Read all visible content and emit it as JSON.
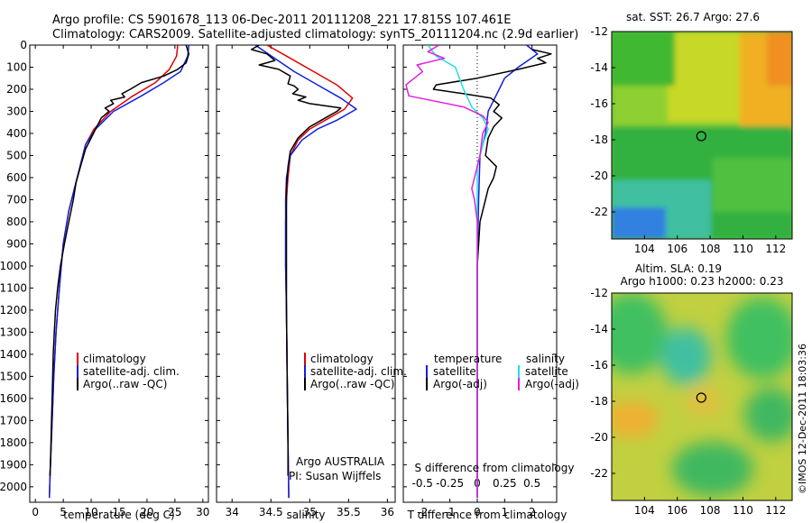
{
  "header": {
    "line1": "Argo profile: CS 5901678_113 06-Dec-2011 20111208_221 17.815S 107.461E",
    "line2": "Climatology: CARS2009. Satellite-adjusted climatology: synTS_20111204.nc (2.9d earlier)"
  },
  "colors": {
    "climatology": "#e00000",
    "satellite": "#1020e0",
    "argo": "#000000",
    "sat_salinity": "#20e0e0",
    "argo_salinity": "#e020e0"
  },
  "depth_axis": {
    "ticks": [
      0,
      100,
      200,
      300,
      400,
      500,
      600,
      700,
      800,
      900,
      1000,
      1100,
      1200,
      1300,
      1400,
      1500,
      1600,
      1700,
      1800,
      1900,
      2000
    ],
    "range": [
      0,
      2070
    ]
  },
  "chart_data": [
    {
      "type": "line",
      "id": "temperature",
      "xlabel": "temperature (deg C)",
      "xlim": [
        -1,
        31
      ],
      "xticks": [
        0,
        5,
        10,
        15,
        20,
        25,
        30
      ],
      "ylim": [
        2070,
        0
      ],
      "legend": [
        "climatology",
        "satellite-adj. clim.",
        "Argo(..raw -QC)"
      ],
      "series": [
        {
          "name": "climatology",
          "color": "#e00000",
          "points": [
            [
              25.5,
              0
            ],
            [
              25.3,
              50
            ],
            [
              24,
              110
            ],
            [
              21.5,
              170
            ],
            [
              17.5,
              230
            ],
            [
              13.5,
              300
            ],
            [
              10.5,
              380
            ],
            [
              9,
              450
            ],
            [
              8,
              550
            ],
            [
              7,
              650
            ],
            [
              6,
              750
            ],
            [
              5,
              900
            ],
            [
              4.3,
              1100
            ],
            [
              3.7,
              1300
            ],
            [
              3.3,
              1500
            ],
            [
              3,
              1700
            ],
            [
              2.7,
              1900
            ],
            [
              2.5,
              2050
            ]
          ]
        },
        {
          "name": "satellite-adj. clim.",
          "color": "#1020e0",
          "points": [
            [
              27.5,
              0
            ],
            [
              27.3,
              50
            ],
            [
              26,
              120
            ],
            [
              23,
              170
            ],
            [
              19,
              230
            ],
            [
              14,
              300
            ],
            [
              10.8,
              380
            ],
            [
              9,
              450
            ],
            [
              8,
              550
            ],
            [
              7,
              650
            ],
            [
              6,
              750
            ],
            [
              5,
              900
            ],
            [
              4.3,
              1100
            ],
            [
              3.7,
              1300
            ],
            [
              3.3,
              1500
            ],
            [
              3,
              1700
            ],
            [
              2.7,
              1900
            ],
            [
              2.5,
              2050
            ]
          ]
        },
        {
          "name": "Argo(..raw -QC)",
          "color": "#000000",
          "points": [
            [
              27,
              0
            ],
            [
              27.5,
              40
            ],
            [
              27,
              80
            ],
            [
              25.5,
              110
            ],
            [
              23,
              140
            ],
            [
              19,
              170
            ],
            [
              17,
              200
            ],
            [
              15.5,
              220
            ],
            [
              16,
              235
            ],
            [
              13.5,
              250
            ],
            [
              14,
              265
            ],
            [
              12.5,
              285
            ],
            [
              13.2,
              300
            ],
            [
              11.8,
              330
            ],
            [
              11,
              370
            ],
            [
              10,
              420
            ],
            [
              9,
              470
            ],
            [
              8.2,
              540
            ],
            [
              7.3,
              620
            ],
            [
              6.8,
              700
            ],
            [
              6,
              800
            ],
            [
              5.2,
              900
            ],
            [
              4.5,
              1000
            ],
            [
              4,
              1100
            ],
            [
              3.6,
              1200
            ],
            [
              3.4,
              1300
            ],
            [
              3.2,
              1400
            ],
            [
              3.1,
              1500
            ],
            [
              3,
              1600
            ],
            [
              2.9,
              1700
            ],
            [
              2.8,
              1800
            ],
            [
              2.7,
              1900
            ],
            [
              2.6,
              1950
            ]
          ]
        }
      ]
    },
    {
      "type": "line",
      "id": "salinity",
      "xlabel": "salinity",
      "xlim": [
        33.8,
        36.1
      ],
      "xticks": [
        34,
        34.5,
        35,
        35.5,
        36
      ],
      "ylim": [
        2070,
        0
      ],
      "legend": [
        "climatology",
        "satellite-adj. clim.",
        "Argo(..raw -QC)"
      ],
      "annotations": [
        "Argo AUSTRALIA",
        "PI: Susan Wijffels"
      ],
      "series": [
        {
          "name": "climatology",
          "color": "#e00000",
          "points": [
            [
              34.45,
              0
            ],
            [
              34.7,
              50
            ],
            [
              35.0,
              110
            ],
            [
              35.35,
              180
            ],
            [
              35.55,
              240
            ],
            [
              35.45,
              290
            ],
            [
              35.2,
              340
            ],
            [
              35.0,
              380
            ],
            [
              34.85,
              430
            ],
            [
              34.75,
              500
            ],
            [
              34.72,
              600
            ],
            [
              34.7,
              700
            ],
            [
              34.69,
              800
            ],
            [
              34.69,
              1000
            ],
            [
              34.7,
              1200
            ],
            [
              34.71,
              1500
            ],
            [
              34.72,
              1800
            ],
            [
              34.73,
              2050
            ]
          ]
        },
        {
          "name": "satellite-adj. clim.",
          "color": "#1020e0",
          "points": [
            [
              34.3,
              0
            ],
            [
              34.55,
              60
            ],
            [
              34.8,
              120
            ],
            [
              35.1,
              180
            ],
            [
              35.4,
              240
            ],
            [
              35.6,
              290
            ],
            [
              35.35,
              340
            ],
            [
              35.1,
              380
            ],
            [
              34.9,
              430
            ],
            [
              34.75,
              500
            ],
            [
              34.7,
              600
            ],
            [
              34.69,
              700
            ],
            [
              34.69,
              800
            ],
            [
              34.69,
              1000
            ],
            [
              34.7,
              1200
            ],
            [
              34.71,
              1500
            ],
            [
              34.72,
              1800
            ],
            [
              34.73,
              2050
            ]
          ]
        },
        {
          "name": "Argo(..raw -QC)",
          "color": "#000000",
          "points": [
            [
              34.35,
              0
            ],
            [
              34.25,
              20
            ],
            [
              34.45,
              40
            ],
            [
              34.55,
              70
            ],
            [
              34.35,
              90
            ],
            [
              34.6,
              110
            ],
            [
              34.75,
              140
            ],
            [
              34.72,
              175
            ],
            [
              34.8,
              185
            ],
            [
              34.85,
              200
            ],
            [
              34.78,
              220
            ],
            [
              34.95,
              235
            ],
            [
              34.85,
              250
            ],
            [
              35.0,
              265
            ],
            [
              35.4,
              285
            ],
            [
              35.35,
              300
            ],
            [
              35.2,
              330
            ],
            [
              35.0,
              370
            ],
            [
              34.85,
              420
            ],
            [
              34.75,
              480
            ],
            [
              34.72,
              550
            ],
            [
              34.7,
              650
            ],
            [
              34.7,
              800
            ],
            [
              34.7,
              1000
            ],
            [
              34.7,
              1200
            ],
            [
              34.71,
              1500
            ],
            [
              34.72,
              1800
            ],
            [
              34.72,
              1950
            ]
          ]
        }
      ]
    },
    {
      "type": "line",
      "id": "difference",
      "xlabel": "T difference from climatology",
      "xlabel_top": "S difference from climatology",
      "xlim": [
        -2.7,
        2.9
      ],
      "xticks": [
        -2,
        -1,
        0,
        1,
        2
      ],
      "top_ticks": [
        -0.5,
        -0.25,
        0,
        0.25,
        0.5
      ],
      "ylim": [
        2070,
        0
      ],
      "legend_titles": [
        "temperature",
        "salinity"
      ],
      "legend": [
        "satellite",
        "Argo(-adj)",
        "satellite",
        "Argo(-adj)"
      ],
      "series": [
        {
          "name": "satellite",
          "group": "temperature",
          "color": "#1020e0",
          "points": [
            [
              1.8,
              0
            ],
            [
              2.2,
              40
            ],
            [
              1.5,
              100
            ],
            [
              1.0,
              150
            ],
            [
              0.8,
              200
            ],
            [
              0.6,
              250
            ],
            [
              0.4,
              300
            ],
            [
              0.3,
              400
            ],
            [
              0.1,
              500
            ],
            [
              0.05,
              700
            ],
            [
              0,
              1000
            ],
            [
              0,
              1500
            ],
            [
              0,
              2050
            ]
          ]
        },
        {
          "name": "Argo(-adj)",
          "group": "temperature",
          "color": "#000000",
          "points": [
            [
              2.0,
              20
            ],
            [
              2.7,
              40
            ],
            [
              2.2,
              60
            ],
            [
              2.5,
              80
            ],
            [
              1.5,
              110
            ],
            [
              0,
              150
            ],
            [
              -1.5,
              180
            ],
            [
              -1.6,
              200
            ],
            [
              -0.5,
              220
            ],
            [
              0.5,
              240
            ],
            [
              0.8,
              270
            ],
            [
              0.6,
              300
            ],
            [
              0.9,
              330
            ],
            [
              0.6,
              370
            ],
            [
              0.4,
              420
            ],
            [
              0.3,
              500
            ],
            [
              0.7,
              550
            ],
            [
              0.6,
              600
            ],
            [
              0.4,
              650
            ],
            [
              0.3,
              700
            ],
            [
              0.1,
              800
            ],
            [
              0,
              1000
            ],
            [
              0,
              1500
            ],
            [
              0,
              2050
            ]
          ]
        },
        {
          "name": "satellite",
          "group": "salinity",
          "color": "#20e0e0",
          "points": [
            [
              -1.8,
              0
            ],
            [
              -1.5,
              50
            ],
            [
              -0.8,
              100
            ],
            [
              -0.5,
              200
            ],
            [
              -0.2,
              280
            ],
            [
              0.2,
              330
            ],
            [
              0.4,
              380
            ],
            [
              0.2,
              450
            ],
            [
              0,
              550
            ],
            [
              0,
              700
            ],
            [
              0,
              1000
            ],
            [
              0,
              1500
            ],
            [
              0,
              2050
            ]
          ]
        },
        {
          "name": "Argo(-adj)",
          "group": "salinity",
          "color": "#e020e0",
          "points": [
            [
              -1.4,
              0
            ],
            [
              -1.8,
              30
            ],
            [
              -1.2,
              60
            ],
            [
              -2.2,
              90
            ],
            [
              -2.0,
              120
            ],
            [
              -2.6,
              180
            ],
            [
              -2.5,
              230
            ],
            [
              -0.5,
              280
            ],
            [
              0.2,
              320
            ],
            [
              0.4,
              350
            ],
            [
              0.2,
              400
            ],
            [
              0.1,
              500
            ],
            [
              -0.1,
              600
            ],
            [
              -0.2,
              650
            ],
            [
              -0.1,
              700
            ],
            [
              0,
              800
            ],
            [
              0,
              1000
            ],
            [
              0,
              1500
            ],
            [
              0,
              2050
            ]
          ]
        }
      ]
    },
    {
      "type": "heatmap",
      "id": "sst-map",
      "title": "sat. SST: 26.7  Argo: 27.6",
      "xlim": [
        102,
        113
      ],
      "ylim": [
        -23.5,
        -12
      ],
      "xticks": [
        104,
        106,
        108,
        110,
        112
      ],
      "yticks": [
        -12,
        -14,
        -16,
        -18,
        -20,
        -22
      ],
      "marker": [
        107.46,
        -17.8
      ]
    },
    {
      "type": "heatmap",
      "id": "sla-map",
      "title_line1": "Altim. SLA: 0.19",
      "title_line2": "Argo h1000: 0.23  h2000: 0.23",
      "xlim": [
        102,
        113
      ],
      "ylim": [
        -23.5,
        -12
      ],
      "xticks": [
        104,
        106,
        108,
        110,
        112
      ],
      "yticks": [
        -12,
        -14,
        -16,
        -18,
        -20,
        -22
      ],
      "marker": [
        107.46,
        -17.8
      ]
    }
  ],
  "credit": "©IMOS 12-Dec-2011 18:03:36"
}
